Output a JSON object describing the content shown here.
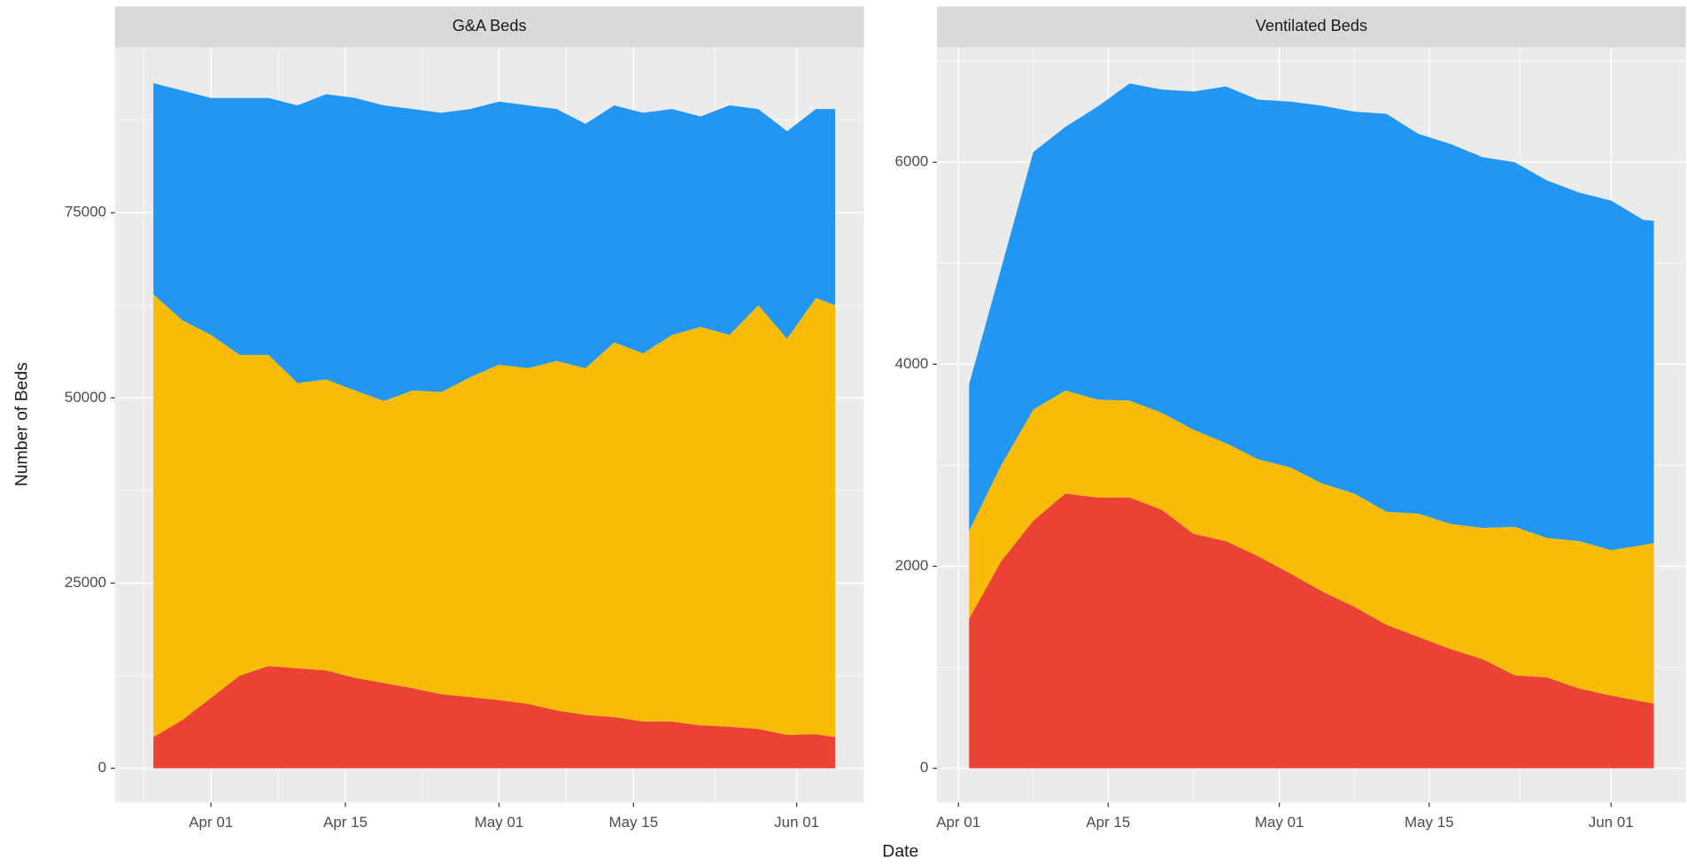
{
  "axis_labels": {
    "x": "Date",
    "y": "Number of Beds"
  },
  "chart_data": [
    {
      "type": "area",
      "stacked": true,
      "title": "G&A Beds",
      "x": [
        "03-26",
        "03-29",
        "04-01",
        "04-04",
        "04-07",
        "04-10",
        "04-13",
        "04-16",
        "04-19",
        "04-22",
        "04-25",
        "04-28",
        "05-01",
        "05-04",
        "05-07",
        "05-10",
        "05-13",
        "05-16",
        "05-19",
        "05-22",
        "05-25",
        "05-28",
        "05-31",
        "06-03",
        "06-05"
      ],
      "series": [
        {
          "color": "#ea4335",
          "values": [
            4200,
            6500,
            9500,
            12500,
            13800,
            13500,
            13200,
            12200,
            11500,
            10800,
            10000,
            9600,
            9200,
            8700,
            7800,
            7200,
            6900,
            6300,
            6300,
            5800,
            5600,
            5300,
            4500,
            4600,
            4200
          ]
        },
        {
          "color": "#f8bb08",
          "values": [
            59800,
            54000,
            49000,
            43300,
            42000,
            38500,
            39300,
            38800,
            38100,
            40200,
            40800,
            43200,
            45300,
            45300,
            47200,
            46800,
            50600,
            49700,
            52200,
            53800,
            52900,
            57200,
            53500,
            58900,
            58300
          ]
        },
        {
          "color": "#2196f3",
          "values": [
            28500,
            31000,
            32000,
            34700,
            34700,
            37500,
            38500,
            39500,
            39900,
            38000,
            37700,
            36200,
            35500,
            35500,
            34000,
            33000,
            32000,
            32500,
            30500,
            28400,
            31000,
            26500,
            28000,
            25500,
            26500
          ]
        }
      ],
      "xlim": [
        "03-22",
        "06-08"
      ],
      "xticks": [
        {
          "value": "04-01",
          "label": "Apr 01"
        },
        {
          "value": "04-15",
          "label": "Apr 15"
        },
        {
          "value": "05-01",
          "label": "May 01"
        },
        {
          "value": "05-15",
          "label": "May 15"
        },
        {
          "value": "06-01",
          "label": "Jun 01"
        }
      ],
      "ylim": [
        -4640,
        97340
      ],
      "yticks": [
        0,
        25000,
        50000,
        75000
      ],
      "grid": true
    },
    {
      "type": "area",
      "stacked": true,
      "title": "Ventilated Beds",
      "x": [
        "04-02",
        "04-05",
        "04-08",
        "04-11",
        "04-14",
        "04-17",
        "04-20",
        "04-23",
        "04-26",
        "04-29",
        "05-02",
        "05-05",
        "05-08",
        "05-11",
        "05-14",
        "05-17",
        "05-20",
        "05-23",
        "05-26",
        "05-29",
        "06-01",
        "06-04",
        "06-05"
      ],
      "series": [
        {
          "color": "#ea4335",
          "values": [
            1480,
            2050,
            2450,
            2720,
            2680,
            2680,
            2560,
            2320,
            2250,
            2100,
            1930,
            1750,
            1600,
            1420,
            1300,
            1180,
            1080,
            920,
            900,
            790,
            720,
            660,
            640
          ]
        },
        {
          "color": "#f8bb08",
          "values": [
            870,
            950,
            1100,
            1020,
            970,
            960,
            960,
            1030,
            970,
            960,
            1050,
            1070,
            1120,
            1120,
            1220,
            1240,
            1300,
            1470,
            1380,
            1460,
            1440,
            1550,
            1590
          ]
        },
        {
          "color": "#2196f3",
          "values": [
            1450,
            1950,
            2550,
            2610,
            2900,
            3140,
            3200,
            3350,
            3530,
            3560,
            3620,
            3740,
            3780,
            3940,
            3760,
            3760,
            3670,
            3610,
            3540,
            3450,
            3460,
            3220,
            3190
          ]
        }
      ],
      "xlim": [
        "03-30",
        "06-08"
      ],
      "xticks": [
        {
          "value": "04-01",
          "label": "Apr 01"
        },
        {
          "value": "04-15",
          "label": "Apr 15"
        },
        {
          "value": "05-01",
          "label": "May 01"
        },
        {
          "value": "05-15",
          "label": "May 15"
        },
        {
          "value": "06-01",
          "label": "Jun 01"
        }
      ],
      "ylim": [
        -340,
        7138
      ],
      "yticks": [
        0,
        2000,
        4000,
        6000
      ],
      "grid": true
    }
  ]
}
